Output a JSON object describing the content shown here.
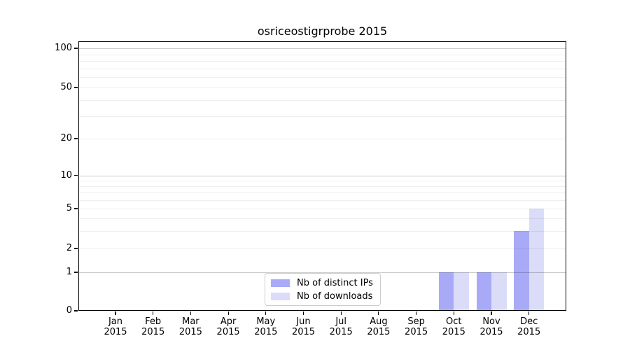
{
  "title": "osriceostigrprobe 2015",
  "legend": {
    "items": [
      {
        "label": "Nb of distinct IPs",
        "color": "#a9aaf7"
      },
      {
        "label": "Nb of downloads",
        "color": "#dadcf8"
      }
    ]
  },
  "chart_data": {
    "type": "bar",
    "title": "osriceostigrprobe 2015",
    "categories": [
      "Jan 2015",
      "Feb 2015",
      "Mar 2015",
      "Apr 2015",
      "May 2015",
      "Jun 2015",
      "Jul 2015",
      "Aug 2015",
      "Sep 2015",
      "Oct 2015",
      "Nov 2015",
      "Dec 2015"
    ],
    "x_tick_month": [
      "Jan",
      "Feb",
      "Mar",
      "Apr",
      "May",
      "Jun",
      "Jul",
      "Aug",
      "Sep",
      "Oct",
      "Nov",
      "Dec"
    ],
    "x_tick_year": "2015",
    "series": [
      {
        "name": "Nb of distinct IPs",
        "color": "#a9aaf7",
        "values": [
          0,
          0,
          0,
          0,
          0,
          0,
          0,
          0,
          0,
          1,
          1,
          3
        ]
      },
      {
        "name": "Nb of downloads",
        "color": "#dadcf8",
        "values": [
          0,
          0,
          0,
          0,
          0,
          0,
          0,
          0,
          0,
          1,
          1,
          5
        ]
      }
    ],
    "xlabel": "",
    "ylabel": "",
    "yscale": "symlog",
    "yticks": [
      0,
      1,
      2,
      5,
      10,
      20,
      50,
      100
    ],
    "y_minor_gridlines": [
      3,
      4,
      6,
      7,
      8,
      9,
      30,
      40,
      60,
      70,
      80,
      90
    ],
    "y_major_gridlines": [
      1,
      10,
      100
    ],
    "ylim": [
      0,
      110
    ],
    "grid": "horizontal",
    "legend_position": "lower center",
    "bar_color_distinct_ips": "#a9aaf7",
    "bar_color_downloads": "#dadcf8",
    "frame_color": "#000000",
    "background_color": "#ffffff"
  }
}
